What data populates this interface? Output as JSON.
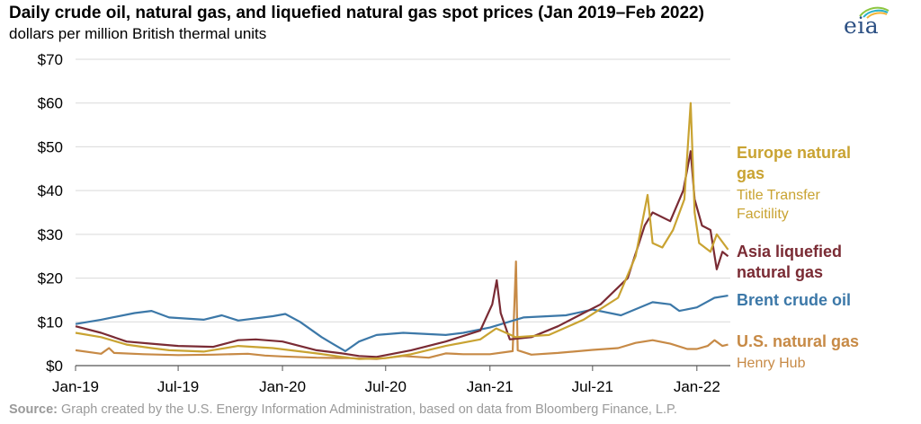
{
  "header": {
    "title": "Daily crude oil, natural gas, and liquefied natural gas spot prices (Jan 2019–Feb 2022)",
    "subtitle": "dollars per million British thermal units",
    "logo_text": "eia"
  },
  "footer": {
    "source_label": "Source:",
    "source_text": "Graph created by the U.S. Energy Information Administration, based on data from Bloomberg Finance, L.P."
  },
  "chart_data": {
    "type": "line",
    "title": "Daily crude oil, natural gas, and liquefied natural gas spot prices (Jan 2019–Feb 2022)",
    "ylabel": "dollars per million British thermal units",
    "xlim": [
      "2019-01-01",
      "2022-03-01"
    ],
    "ylim": [
      0,
      70
    ],
    "y_ticks": [
      0,
      10,
      20,
      30,
      40,
      50,
      60,
      70
    ],
    "y_tick_labels": [
      "$0",
      "$10",
      "$20",
      "$30",
      "$40",
      "$50",
      "$60",
      "$70"
    ],
    "x_ticks": [
      "2019-01-01",
      "2019-07-01",
      "2020-01-01",
      "2020-07-01",
      "2021-01-01",
      "2021-07-01",
      "2022-01-01"
    ],
    "x_tick_labels": [
      "Jan-19",
      "Jul-19",
      "Jan-20",
      "Jul-20",
      "Jan-21",
      "Jul-21",
      "Jan-22"
    ],
    "grid": "horizontal",
    "legend": "right",
    "series": [
      {
        "id": "henry",
        "name": "U.S. natural gas",
        "sub": "Henry Hub",
        "color": "#c78a46",
        "points": [
          [
            "2019-01-01",
            3.5
          ],
          [
            "2019-02-15",
            2.7
          ],
          [
            "2019-03-01",
            4.0
          ],
          [
            "2019-03-10",
            2.9
          ],
          [
            "2019-05-01",
            2.6
          ],
          [
            "2019-07-01",
            2.4
          ],
          [
            "2019-09-01",
            2.5
          ],
          [
            "2019-11-01",
            2.7
          ],
          [
            "2019-12-01",
            2.3
          ],
          [
            "2020-01-01",
            2.1
          ],
          [
            "2020-03-01",
            1.8
          ],
          [
            "2020-05-01",
            1.7
          ],
          [
            "2020-06-15",
            1.5
          ],
          [
            "2020-08-01",
            2.2
          ],
          [
            "2020-09-15",
            1.8
          ],
          [
            "2020-10-15",
            2.8
          ],
          [
            "2020-11-15",
            2.6
          ],
          [
            "2021-01-01",
            2.6
          ],
          [
            "2021-02-10",
            3.3
          ],
          [
            "2021-02-16",
            23.8
          ],
          [
            "2021-02-19",
            3.5
          ],
          [
            "2021-03-15",
            2.5
          ],
          [
            "2021-05-01",
            2.9
          ],
          [
            "2021-07-01",
            3.6
          ],
          [
            "2021-08-15",
            4.0
          ],
          [
            "2021-09-15",
            5.2
          ],
          [
            "2021-10-15",
            5.8
          ],
          [
            "2021-11-15",
            5.0
          ],
          [
            "2021-12-15",
            3.8
          ],
          [
            "2022-01-01",
            3.8
          ],
          [
            "2022-01-20",
            4.5
          ],
          [
            "2022-02-01",
            5.8
          ],
          [
            "2022-02-15",
            4.5
          ],
          [
            "2022-02-25",
            4.8
          ]
        ]
      },
      {
        "id": "brent",
        "name": "Brent crude oil",
        "sub": "",
        "color": "#3c78a8",
        "points": [
          [
            "2019-01-01",
            9.5
          ],
          [
            "2019-02-15",
            10.5
          ],
          [
            "2019-04-15",
            12.0
          ],
          [
            "2019-05-15",
            12.5
          ],
          [
            "2019-06-15",
            11.0
          ],
          [
            "2019-08-15",
            10.5
          ],
          [
            "2019-09-16",
            11.5
          ],
          [
            "2019-10-15",
            10.3
          ],
          [
            "2019-12-15",
            11.3
          ],
          [
            "2020-01-06",
            11.8
          ],
          [
            "2020-02-01",
            10.0
          ],
          [
            "2020-03-10",
            6.5
          ],
          [
            "2020-04-01",
            4.8
          ],
          [
            "2020-04-21",
            3.3
          ],
          [
            "2020-05-15",
            5.5
          ],
          [
            "2020-06-15",
            7.0
          ],
          [
            "2020-08-01",
            7.5
          ],
          [
            "2020-10-15",
            7.0
          ],
          [
            "2020-11-15",
            7.5
          ],
          [
            "2021-01-01",
            8.7
          ],
          [
            "2021-03-01",
            11.0
          ],
          [
            "2021-05-15",
            11.5
          ],
          [
            "2021-07-01",
            12.8
          ],
          [
            "2021-08-20",
            11.5
          ],
          [
            "2021-10-15",
            14.5
          ],
          [
            "2021-11-15",
            14.0
          ],
          [
            "2021-12-01",
            12.5
          ],
          [
            "2022-01-01",
            13.3
          ],
          [
            "2022-02-01",
            15.5
          ],
          [
            "2022-02-25",
            16.0
          ]
        ]
      },
      {
        "id": "asia",
        "name": "Asia liquefied natural gas",
        "sub": "",
        "color": "#7a2b34",
        "points": [
          [
            "2019-01-01",
            9.0
          ],
          [
            "2019-02-15",
            7.5
          ],
          [
            "2019-04-01",
            5.5
          ],
          [
            "2019-05-15",
            5.0
          ],
          [
            "2019-07-01",
            4.5
          ],
          [
            "2019-09-01",
            4.3
          ],
          [
            "2019-10-15",
            5.8
          ],
          [
            "2019-11-15",
            6.0
          ],
          [
            "2020-01-01",
            5.5
          ],
          [
            "2020-03-01",
            3.5
          ],
          [
            "2020-04-15",
            2.8
          ],
          [
            "2020-05-15",
            2.2
          ],
          [
            "2020-06-15",
            2.0
          ],
          [
            "2020-08-15",
            3.5
          ],
          [
            "2020-10-15",
            5.5
          ],
          [
            "2020-12-15",
            8.0
          ],
          [
            "2021-01-05",
            14.0
          ],
          [
            "2021-01-13",
            19.5
          ],
          [
            "2021-01-20",
            12.0
          ],
          [
            "2021-02-05",
            6.0
          ],
          [
            "2021-03-15",
            6.5
          ],
          [
            "2021-05-01",
            9.0
          ],
          [
            "2021-06-15",
            12.0
          ],
          [
            "2021-07-15",
            14.0
          ],
          [
            "2021-09-01",
            20.0
          ],
          [
            "2021-10-01",
            32.0
          ],
          [
            "2021-10-15",
            35.0
          ],
          [
            "2021-11-15",
            33.0
          ],
          [
            "2021-12-08",
            40.0
          ],
          [
            "2021-12-21",
            49.0
          ],
          [
            "2021-12-28",
            38.0
          ],
          [
            "2022-01-10",
            32.0
          ],
          [
            "2022-01-25",
            31.0
          ],
          [
            "2022-02-05",
            22.0
          ],
          [
            "2022-02-15",
            26.0
          ],
          [
            "2022-02-25",
            25.0
          ]
        ]
      },
      {
        "id": "europe",
        "name": "Europe natural gas",
        "sub": "Title Transfer Facitility",
        "color": "#c9a332",
        "points": [
          [
            "2019-01-01",
            7.5
          ],
          [
            "2019-02-15",
            6.5
          ],
          [
            "2019-04-01",
            4.8
          ],
          [
            "2019-05-15",
            4.0
          ],
          [
            "2019-06-15",
            3.5
          ],
          [
            "2019-08-15",
            3.2
          ],
          [
            "2019-10-15",
            4.5
          ],
          [
            "2019-12-15",
            4.0
          ],
          [
            "2020-01-15",
            3.5
          ],
          [
            "2020-03-01",
            2.8
          ],
          [
            "2020-04-15",
            2.0
          ],
          [
            "2020-05-15",
            1.5
          ],
          [
            "2020-07-01",
            1.7
          ],
          [
            "2020-08-15",
            2.6
          ],
          [
            "2020-10-15",
            4.5
          ],
          [
            "2020-12-15",
            6.0
          ],
          [
            "2021-01-12",
            8.5
          ],
          [
            "2021-02-15",
            6.5
          ],
          [
            "2021-04-15",
            7.0
          ],
          [
            "2021-06-15",
            10.5
          ],
          [
            "2021-08-15",
            15.5
          ],
          [
            "2021-09-15",
            25.0
          ],
          [
            "2021-10-06",
            39.0
          ],
          [
            "2021-10-15",
            28.0
          ],
          [
            "2021-11-01",
            27.0
          ],
          [
            "2021-11-20",
            31.0
          ],
          [
            "2021-12-10",
            38.0
          ],
          [
            "2021-12-21",
            60.0
          ],
          [
            "2021-12-28",
            35.0
          ],
          [
            "2022-01-05",
            28.0
          ],
          [
            "2022-01-25",
            26.0
          ],
          [
            "2022-02-05",
            30.0
          ],
          [
            "2022-02-25",
            26.5
          ]
        ]
      }
    ]
  }
}
